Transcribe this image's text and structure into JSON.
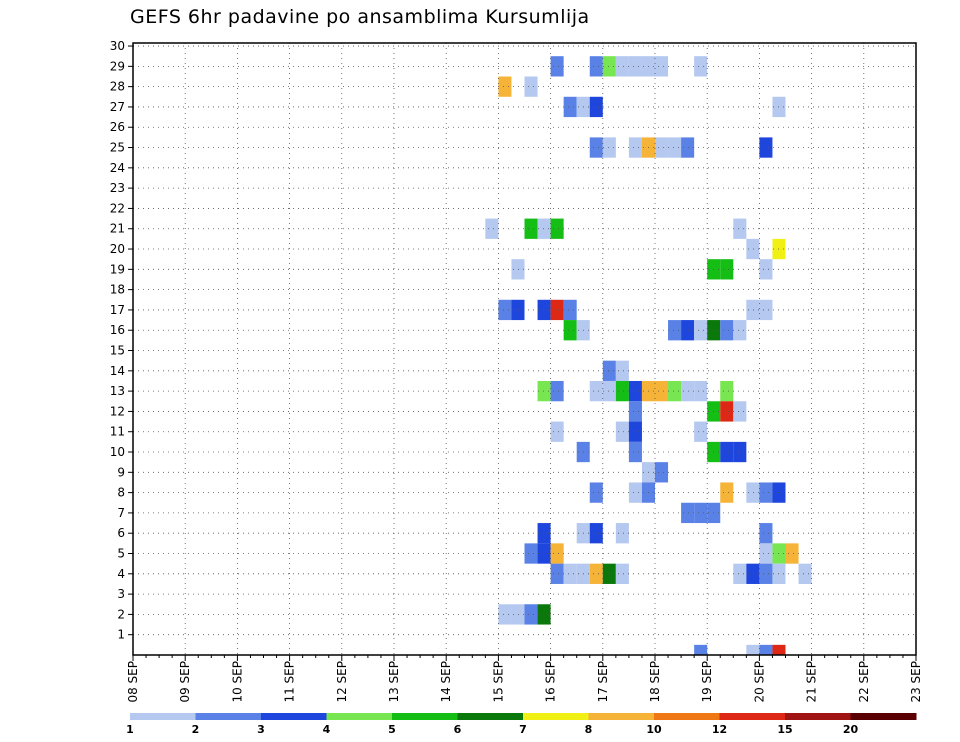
{
  "chart_data": {
    "type": "heatmap",
    "title": "GEFS 6hr padavine po ansamblima Kursumlija",
    "x_labels": [
      "08 SEP",
      "09 SEP",
      "10 SEP",
      "11 SEP",
      "12 SEP",
      "13 SEP",
      "14 SEP",
      "15 SEP",
      "16 SEP",
      "17 SEP",
      "18 SEP",
      "19 SEP",
      "20 SEP",
      "21 SEP",
      "22 SEP",
      "23 SEP"
    ],
    "y_ticks": [
      1,
      2,
      3,
      4,
      5,
      6,
      7,
      8,
      9,
      10,
      11,
      12,
      13,
      14,
      15,
      16,
      17,
      18,
      19,
      20,
      21,
      22,
      23,
      24,
      25,
      26,
      27,
      28,
      29,
      30
    ],
    "ylim": [
      0,
      30
    ],
    "step_unit": "6h steps from 08 SEP 00Z",
    "grid": true,
    "colorbar": {
      "tick_labels": [
        "1",
        "2",
        "3",
        "4",
        "5",
        "6",
        "7",
        "8",
        "10",
        "12",
        "15",
        "20"
      ],
      "colors": [
        "#b4c8f0",
        "#5a82e6",
        "#1e46dc",
        "#78e650",
        "#14be14",
        "#0a780a",
        "#f0f014",
        "#f5b437",
        "#f07814",
        "#dc2814",
        "#a01414",
        "#5a0000"
      ]
    },
    "cells": [
      [
        29,
        60,
        2
      ],
      [
        29,
        63,
        2
      ],
      [
        29,
        64,
        4
      ],
      [
        29,
        65,
        1
      ],
      [
        29,
        66,
        1
      ],
      [
        29,
        67,
        1
      ],
      [
        29,
        68,
        1
      ],
      [
        29,
        71,
        1
      ],
      [
        28,
        56,
        8
      ],
      [
        28,
        58,
        1
      ],
      [
        27,
        61,
        2
      ],
      [
        27,
        62,
        1
      ],
      [
        27,
        63,
        3
      ],
      [
        27,
        77,
        1
      ],
      [
        25,
        63,
        2
      ],
      [
        25,
        64,
        1
      ],
      [
        25,
        66,
        1
      ],
      [
        25,
        67,
        8
      ],
      [
        25,
        68,
        1
      ],
      [
        25,
        69,
        1
      ],
      [
        25,
        70,
        2
      ],
      [
        25,
        76,
        3
      ],
      [
        21,
        55,
        1
      ],
      [
        21,
        58,
        5
      ],
      [
        21,
        59,
        15
      ],
      [
        21,
        60,
        5
      ],
      [
        21,
        74,
        1
      ],
      [
        20,
        75,
        1
      ],
      [
        20,
        77,
        7
      ],
      [
        19,
        57,
        1
      ],
      [
        19,
        72,
        5
      ],
      [
        19,
        73,
        5
      ],
      [
        19,
        76,
        1
      ],
      [
        17,
        56,
        2
      ],
      [
        17,
        57,
        3
      ],
      [
        17,
        59,
        3
      ],
      [
        17,
        60,
        10
      ],
      [
        17,
        61,
        2
      ],
      [
        17,
        75,
        1
      ],
      [
        17,
        76,
        1
      ],
      [
        16,
        61,
        5
      ],
      [
        16,
        62,
        1
      ],
      [
        16,
        69,
        2
      ],
      [
        16,
        70,
        3
      ],
      [
        16,
        71,
        1
      ],
      [
        16,
        72,
        6
      ],
      [
        16,
        73,
        2
      ],
      [
        16,
        74,
        1
      ],
      [
        14,
        64,
        2
      ],
      [
        14,
        65,
        1
      ],
      [
        13,
        59,
        4
      ],
      [
        13,
        60,
        2
      ],
      [
        13,
        63,
        1
      ],
      [
        13,
        64,
        1
      ],
      [
        13,
        65,
        5
      ],
      [
        13,
        66,
        3
      ],
      [
        13,
        67,
        8
      ],
      [
        13,
        68,
        8
      ],
      [
        13,
        69,
        4
      ],
      [
        13,
        70,
        1
      ],
      [
        13,
        71,
        1
      ],
      [
        13,
        73,
        4
      ],
      [
        12,
        66,
        2
      ],
      [
        12,
        72,
        5
      ],
      [
        12,
        73,
        10
      ],
      [
        12,
        74,
        1
      ],
      [
        11,
        60,
        1
      ],
      [
        11,
        65,
        1
      ],
      [
        11,
        66,
        3
      ],
      [
        11,
        71,
        1
      ],
      [
        10,
        62,
        2
      ],
      [
        10,
        66,
        2
      ],
      [
        10,
        72,
        5
      ],
      [
        10,
        73,
        3
      ],
      [
        10,
        74,
        3
      ],
      [
        9,
        67,
        1
      ],
      [
        9,
        68,
        2
      ],
      [
        8,
        63,
        2
      ],
      [
        8,
        66,
        1
      ],
      [
        8,
        67,
        2
      ],
      [
        8,
        73,
        8
      ],
      [
        8,
        75,
        1
      ],
      [
        8,
        76,
        2
      ],
      [
        8,
        77,
        3
      ],
      [
        7,
        70,
        2
      ],
      [
        7,
        71,
        2
      ],
      [
        7,
        72,
        2
      ],
      [
        6,
        59,
        3
      ],
      [
        6,
        62,
        1
      ],
      [
        6,
        63,
        3
      ],
      [
        6,
        65,
        1
      ],
      [
        6,
        76,
        2
      ],
      [
        5,
        58,
        2
      ],
      [
        5,
        59,
        3
      ],
      [
        5,
        60,
        8
      ],
      [
        5,
        76,
        1
      ],
      [
        5,
        77,
        4
      ],
      [
        5,
        78,
        8
      ],
      [
        4,
        60,
        2
      ],
      [
        4,
        61,
        1
      ],
      [
        4,
        62,
        1
      ],
      [
        4,
        63,
        8
      ],
      [
        4,
        64,
        6
      ],
      [
        4,
        65,
        1
      ],
      [
        4,
        74,
        1
      ],
      [
        4,
        75,
        3
      ],
      [
        4,
        76,
        2
      ],
      [
        4,
        77,
        1
      ],
      [
        4,
        79,
        1
      ],
      [
        2,
        56,
        1
      ],
      [
        2,
        57,
        1
      ],
      [
        2,
        58,
        2
      ],
      [
        2,
        59,
        6
      ],
      [
        0,
        71,
        2
      ],
      [
        0,
        75,
        1
      ],
      [
        0,
        76,
        2
      ],
      [
        0,
        77,
        10
      ]
    ]
  }
}
